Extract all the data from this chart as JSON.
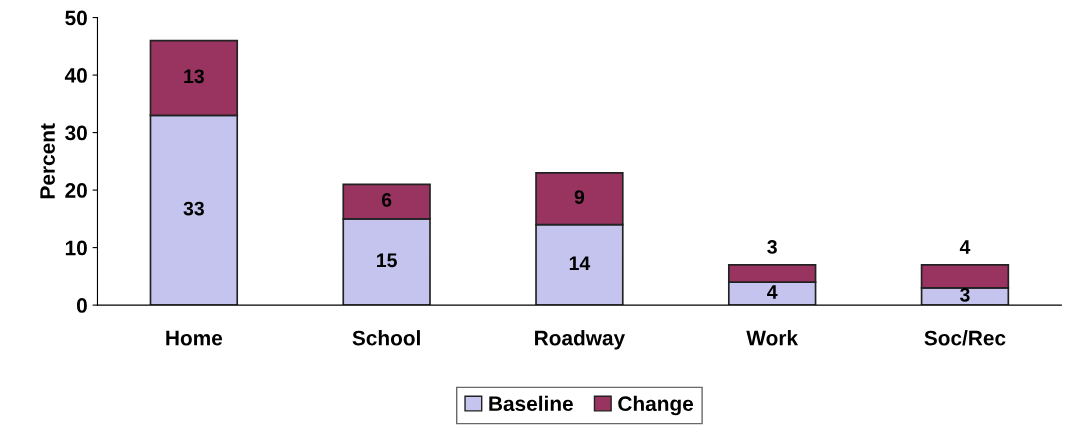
{
  "chart_data": {
    "type": "bar",
    "stacked": true,
    "ylabel": "Percent",
    "categories": [
      "Home",
      "School",
      "Roadway",
      "Work",
      "Soc/Rec"
    ],
    "series": [
      {
        "name": "Baseline",
        "color": "#c4c4ee",
        "values": [
          33,
          15,
          14,
          4,
          3
        ]
      },
      {
        "name": "Change",
        "color": "#993360",
        "values": [
          13,
          6,
          9,
          3,
          4
        ]
      }
    ],
    "ylim": [
      0,
      50
    ],
    "yticks": [
      0,
      10,
      20,
      30,
      40,
      50
    ],
    "grid": false,
    "legend": "bottom",
    "data_labels": true
  }
}
